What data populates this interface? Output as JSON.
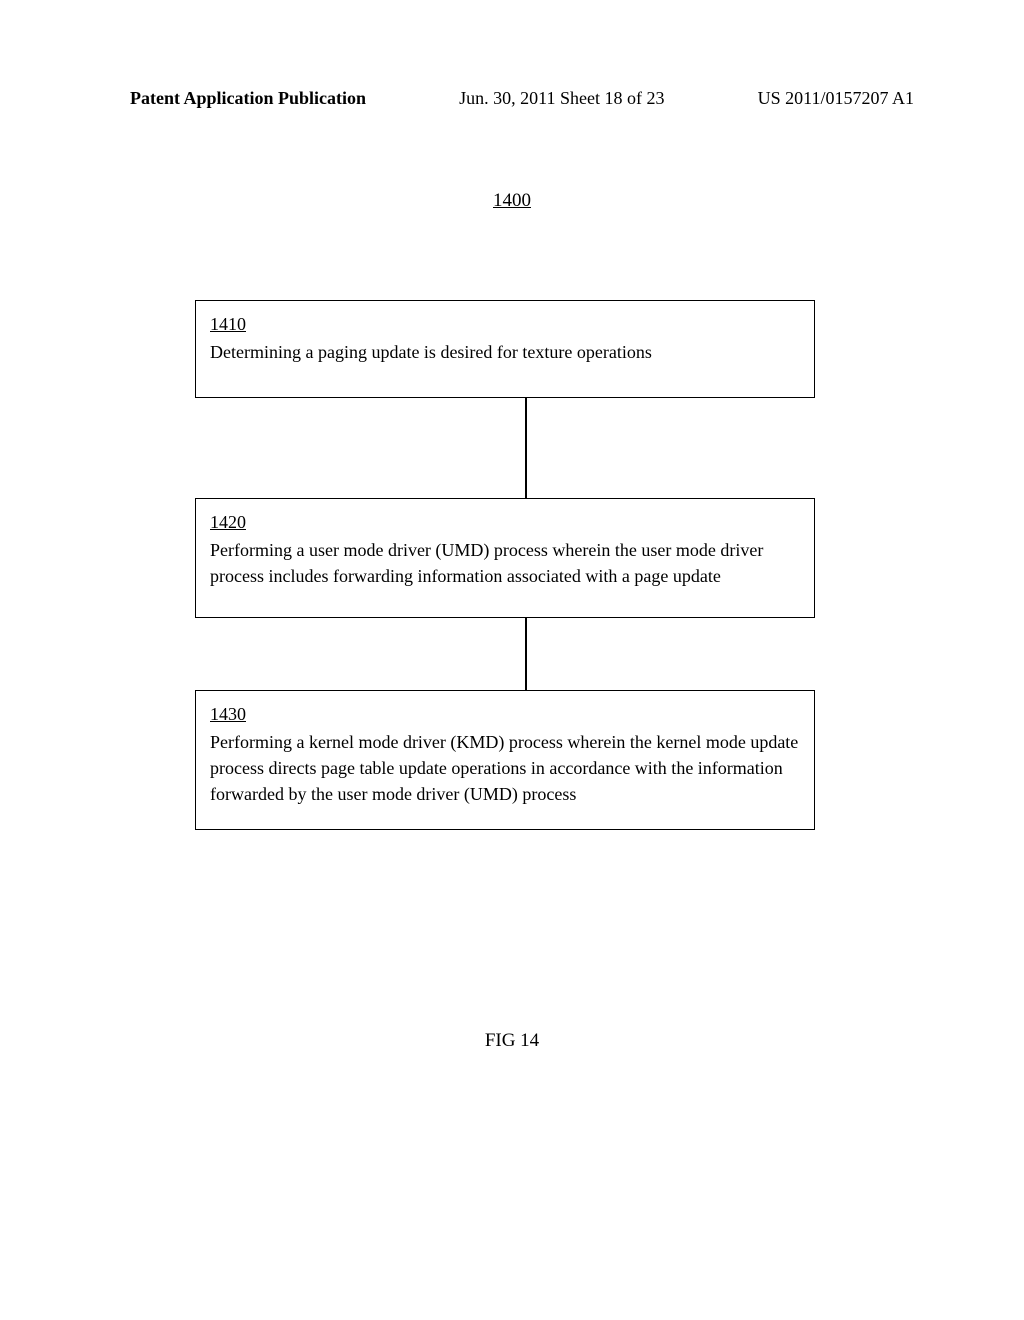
{
  "header": {
    "left": "Patent Application Publication",
    "center": "Jun. 30, 2011  Sheet 18 of 23",
    "right": "US 2011/0157207 A1"
  },
  "diagram": {
    "number": "1400"
  },
  "boxes": [
    {
      "ref": "1410",
      "text": "Determining a paging update is desired for texture operations"
    },
    {
      "ref": "1420",
      "text": "Performing a user mode driver (UMD) process wherein the user mode driver process includes forwarding information associated with a page update"
    },
    {
      "ref": "1430",
      "text": "Performing a kernel mode driver (KMD) process wherein the kernel mode update process directs page table update operations in accordance with the information forwarded by the user mode driver (UMD) process"
    }
  ],
  "figure_label": "FIG 14"
}
